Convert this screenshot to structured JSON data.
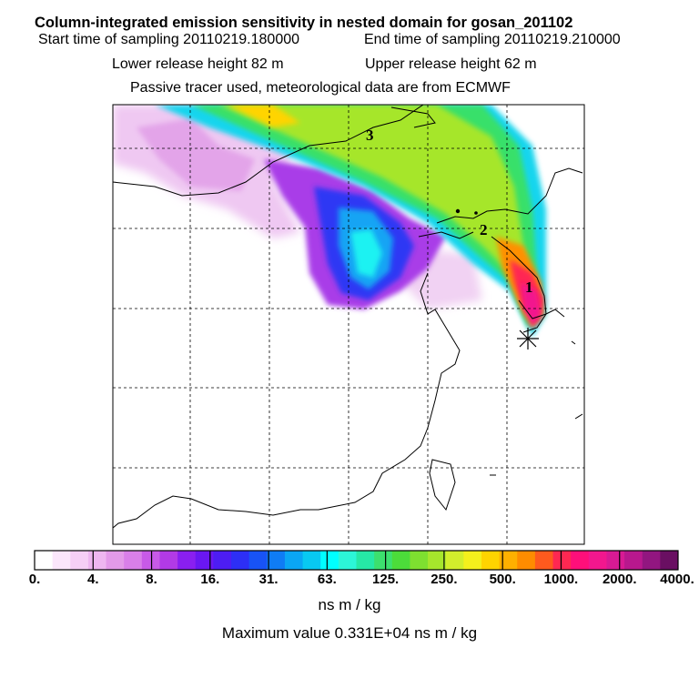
{
  "header": {
    "title": "Column-integrated emission sensitivity in nested domain for gosan_201102",
    "start_label": "Start time of sampling 20110219.180000",
    "end_label": "End time of sampling 20110219.210000",
    "lower_label": "Lower release height   82 m",
    "upper_label": "Upper release height   62 m",
    "note": "Passive tracer used, meteorological data are from ECMWF"
  },
  "map": {
    "track_labels": [
      "1",
      "2",
      "3"
    ],
    "release_marker": "release-site-star"
  },
  "colorbar": {
    "colors": [
      "#ffffff",
      "#fbe6fb",
      "#f6cff6",
      "#eeb6f0",
      "#e39ae9",
      "#d97fe9",
      "#c85ae8",
      "#b23ae6",
      "#8a1ff0",
      "#6a17f2",
      "#4d1df3",
      "#2d2ff5",
      "#1853f6",
      "#0f7cf5",
      "#0aa6f4",
      "#08c9f2",
      "#00ffff",
      "#2cf6d8",
      "#26e8a6",
      "#3ce06e",
      "#4cdc3a",
      "#7ee030",
      "#a6e62c",
      "#d2ee2c",
      "#f4f01c",
      "#ffd400",
      "#ffb000",
      "#ff8c00",
      "#ff5a1e",
      "#ff2852",
      "#ff0f7a",
      "#f2178e",
      "#d81a94",
      "#b8188e",
      "#921680",
      "#6a0f62"
    ],
    "tick_labels": [
      "0.",
      "4.",
      "8.",
      "16.",
      "31.",
      "63.",
      "125.",
      "250.",
      "500.",
      "1000.",
      "2000.",
      "4000."
    ],
    "units": "ns m / kg",
    "max_value_text": "Maximum value  0.331E+04 ns m / kg"
  }
}
